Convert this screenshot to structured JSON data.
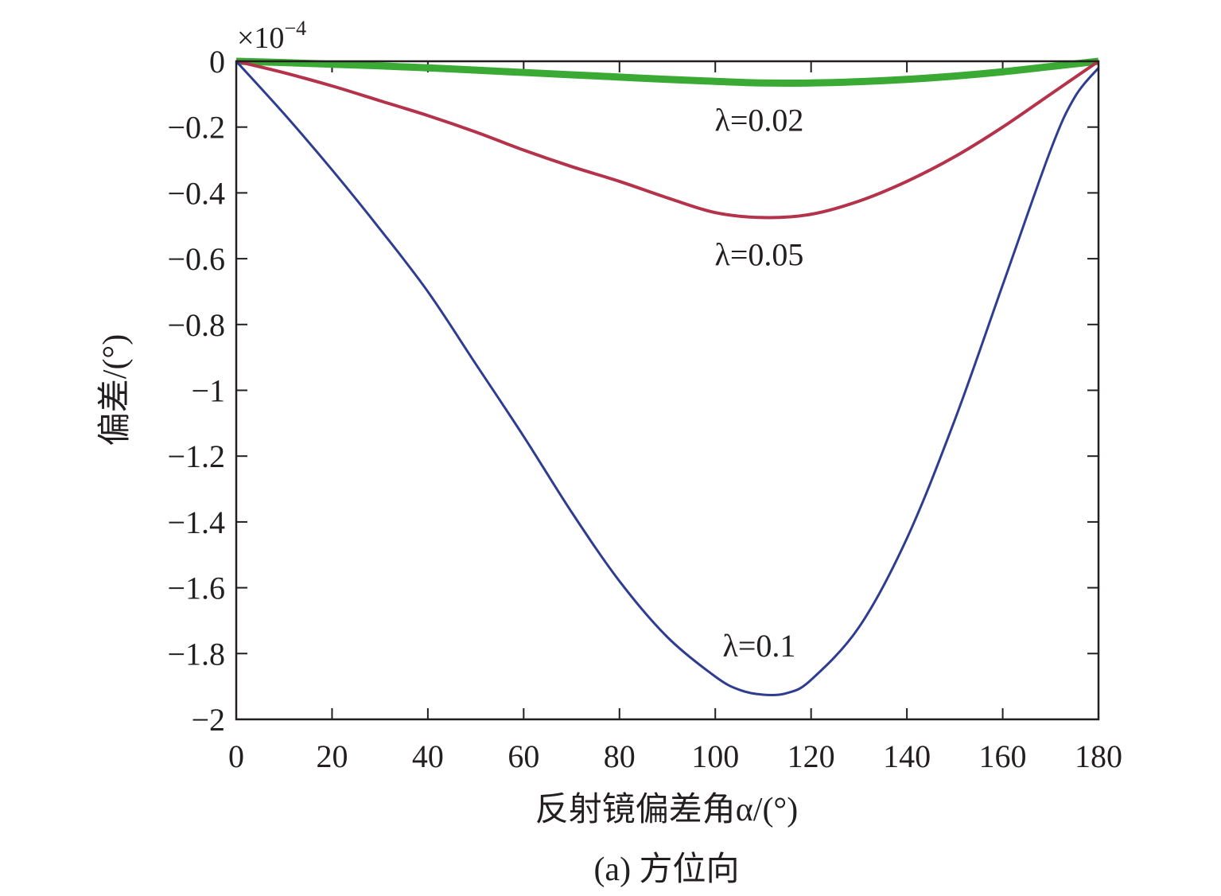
{
  "chart_data": {
    "type": "line",
    "title": "",
    "caption": "(a) 方位向",
    "xlabel": "反射镜偏差角α/(°)",
    "ylabel": "偏差/(°)",
    "y_scale_multiplier": "×10",
    "y_scale_exponent": "−4",
    "xlim": [
      0,
      180
    ],
    "ylim": [
      -2,
      0
    ],
    "x_ticks": [
      0,
      20,
      40,
      60,
      80,
      100,
      120,
      140,
      160,
      180
    ],
    "x_tick_labels": [
      "0",
      "20",
      "40",
      "60",
      "80",
      "100",
      "120",
      "140",
      "160",
      "180"
    ],
    "y_ticks": [
      0,
      -0.2,
      -0.4,
      -0.6,
      -0.8,
      -1,
      -1.2,
      -1.4,
      -1.6,
      -1.8,
      -2
    ],
    "y_tick_labels": [
      "0",
      "−0.2",
      "−0.4",
      "−0.6",
      "−0.8",
      "−1",
      "−1.2",
      "−1.4",
      "−1.6",
      "−1.8",
      "−2"
    ],
    "grid": false,
    "series": [
      {
        "label": "λ=0.02",
        "color": "#3aaa35",
        "x": [
          0,
          10,
          20,
          30,
          40,
          50,
          60,
          70,
          80,
          90,
          100,
          110,
          120,
          130,
          140,
          150,
          160,
          170,
          180
        ],
        "y": [
          0,
          -0.004,
          -0.009,
          -0.014,
          -0.02,
          -0.027,
          -0.034,
          -0.041,
          -0.048,
          -0.055,
          -0.061,
          -0.066,
          -0.066,
          -0.062,
          -0.055,
          -0.045,
          -0.032,
          -0.016,
          0
        ]
      },
      {
        "label": "λ=0.05",
        "color": "#b5334a",
        "x": [
          0,
          10,
          20,
          30,
          40,
          50,
          60,
          70,
          80,
          90,
          100,
          110,
          120,
          130,
          140,
          150,
          160,
          170,
          180
        ],
        "y": [
          0,
          -0.035,
          -0.075,
          -0.12,
          -0.165,
          -0.215,
          -0.27,
          -0.32,
          -0.365,
          -0.415,
          -0.46,
          -0.475,
          -0.465,
          -0.425,
          -0.365,
          -0.29,
          -0.2,
          -0.1,
          0
        ]
      },
      {
        "label": "λ=0.1",
        "color": "#2e3d8f",
        "x": [
          0,
          10,
          20,
          30,
          40,
          50,
          60,
          70,
          80,
          90,
          100,
          105,
          110,
          115,
          120,
          130,
          140,
          150,
          160,
          170,
          175,
          180
        ],
        "y": [
          0,
          -0.16,
          -0.33,
          -0.51,
          -0.7,
          -0.92,
          -1.14,
          -1.37,
          -1.58,
          -1.75,
          -1.87,
          -1.91,
          -1.925,
          -1.92,
          -1.88,
          -1.72,
          -1.45,
          -1.09,
          -0.68,
          -0.27,
          -0.11,
          -0.02
        ]
      }
    ]
  }
}
